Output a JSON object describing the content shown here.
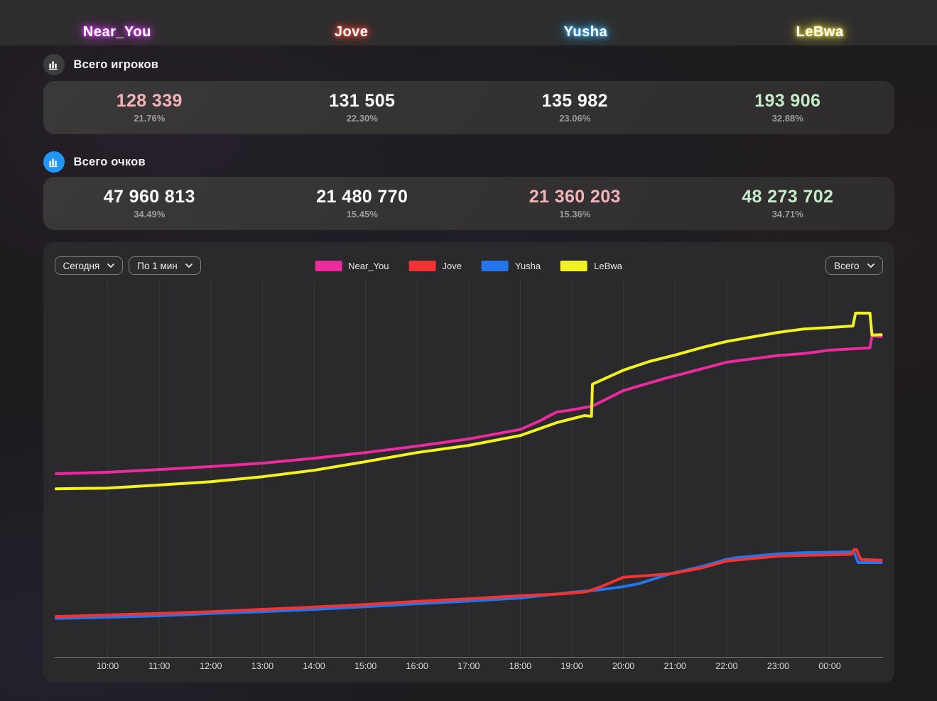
{
  "players": [
    {
      "name": "Near_You",
      "color": "#ea2a9d",
      "glow": "#d93df2"
    },
    {
      "name": "Jove",
      "color": "#f23333",
      "glow": "#ff4b3a"
    },
    {
      "name": "Yusha",
      "color": "#2574e9",
      "glow": "#3fb6ff"
    },
    {
      "name": "LeBwa",
      "color": "#f2f222",
      "glow": "#f0e43c"
    }
  ],
  "tones": {
    "white": "#fafafa",
    "pink": "#f3b3ba",
    "green": "#c5ebc9"
  },
  "sections": [
    {
      "title": "Всего игроков",
      "icon": "bar-chart-icon",
      "icon_bg": "#3d3d3d",
      "icon_fg": "#ffffff",
      "stats": [
        {
          "value": "128 339",
          "percent": "21.76%",
          "tone": "pink"
        },
        {
          "value": "131 505",
          "percent": "22.30%",
          "tone": "white"
        },
        {
          "value": "135 982",
          "percent": "23.06%",
          "tone": "white"
        },
        {
          "value": "193 906",
          "percent": "32.88%",
          "tone": "green"
        }
      ]
    },
    {
      "title": "Всего очков",
      "icon": "bar-chart-icon",
      "icon_bg": "#2196f3",
      "icon_fg": "#ffffff",
      "stats": [
        {
          "value": "47 960 813",
          "percent": "34.49%",
          "tone": "white"
        },
        {
          "value": "21 480 770",
          "percent": "15.45%",
          "tone": "white"
        },
        {
          "value": "21 360 203",
          "percent": "15.36%",
          "tone": "pink"
        },
        {
          "value": "48 273 702",
          "percent": "34.71%",
          "tone": "green"
        }
      ]
    }
  ],
  "chart": {
    "controls": {
      "period": "Сегодня",
      "interval": "По 1 мин",
      "metric": "Всего"
    }
  },
  "chart_data": {
    "type": "line",
    "title": "",
    "xlabel": "",
    "ylabel": "",
    "x_unit": "time_of_day_hours",
    "x_range_hours": [
      9,
      25
    ],
    "x_ticks": [
      "10:00",
      "11:00",
      "12:00",
      "13:00",
      "14:00",
      "15:00",
      "16:00",
      "17:00",
      "18:00",
      "19:00",
      "20:00",
      "21:00",
      "22:00",
      "23:00",
      "00:00"
    ],
    "y_axis_labels_shown": false,
    "y_unit": "estimated_percent_of_plot_height",
    "grid": "vertical-only",
    "legend_position": "top-center",
    "series": [
      {
        "name": "Yusha",
        "color": "#2574e9",
        "points": [
          [
            9,
            10.2
          ],
          [
            10,
            10.5
          ],
          [
            11,
            10.9
          ],
          [
            12,
            11.5
          ],
          [
            13,
            12.0
          ],
          [
            14,
            12.6
          ],
          [
            15,
            13.3
          ],
          [
            16,
            14.1
          ],
          [
            17,
            14.8
          ],
          [
            18,
            15.6
          ],
          [
            19,
            17.1
          ],
          [
            19.5,
            17.7
          ],
          [
            20,
            18.6
          ],
          [
            20.3,
            19.4
          ],
          [
            20.9,
            22.0
          ],
          [
            21.5,
            23.9
          ],
          [
            22,
            25.8
          ],
          [
            22.2,
            26.3
          ],
          [
            23,
            27.3
          ],
          [
            23.5,
            27.6
          ],
          [
            24.4,
            27.8
          ],
          [
            24.47,
            27.8
          ],
          [
            24.55,
            25.0
          ],
          [
            25,
            25.0
          ]
        ]
      },
      {
        "name": "Jove",
        "color": "#f23333",
        "points": [
          [
            9,
            10.7
          ],
          [
            10,
            11.1
          ],
          [
            11,
            11.5
          ],
          [
            12,
            12.0
          ],
          [
            13,
            12.6
          ],
          [
            14,
            13.2
          ],
          [
            15,
            13.9
          ],
          [
            16,
            14.7
          ],
          [
            17,
            15.4
          ],
          [
            18,
            16.2
          ],
          [
            18.8,
            16.7
          ],
          [
            19.3,
            17.3
          ],
          [
            19.6,
            18.8
          ],
          [
            20,
            21.1
          ],
          [
            20.3,
            21.4
          ],
          [
            20.9,
            22.0
          ],
          [
            21.5,
            23.5
          ],
          [
            22,
            25.4
          ],
          [
            23,
            26.7
          ],
          [
            23.5,
            26.9
          ],
          [
            24.3,
            27.1
          ],
          [
            24.42,
            27.2
          ],
          [
            24.47,
            28.4
          ],
          [
            24.52,
            28.4
          ],
          [
            24.6,
            25.8
          ],
          [
            25,
            25.6
          ]
        ]
      },
      {
        "name": "Near_You",
        "color": "#ea2a9d",
        "points": [
          [
            9,
            48.5
          ],
          [
            10,
            48.9
          ],
          [
            11,
            49.6
          ],
          [
            12,
            50.4
          ],
          [
            13,
            51.3
          ],
          [
            14,
            52.6
          ],
          [
            15,
            54.1
          ],
          [
            16,
            55.8
          ],
          [
            17,
            57.7
          ],
          [
            18,
            60.2
          ],
          [
            18.35,
            62.3
          ],
          [
            18.7,
            64.8
          ],
          [
            19,
            65.4
          ],
          [
            19.4,
            66.4
          ],
          [
            20,
            70.5
          ],
          [
            20.8,
            73.7
          ],
          [
            21,
            74.4
          ],
          [
            22,
            78.0
          ],
          [
            23,
            79.8
          ],
          [
            23.5,
            80.3
          ],
          [
            24,
            81.2
          ],
          [
            24.78,
            81.8
          ],
          [
            24.82,
            85.0
          ],
          [
            25,
            84.8
          ]
        ]
      },
      {
        "name": "LeBwa",
        "color": "#f2f222",
        "points": [
          [
            9,
            44.5
          ],
          [
            10,
            44.7
          ],
          [
            11,
            45.5
          ],
          [
            12,
            46.4
          ],
          [
            13,
            47.7
          ],
          [
            14,
            49.4
          ],
          [
            15,
            51.7
          ],
          [
            16,
            54.1
          ],
          [
            17,
            56.0
          ],
          [
            18,
            58.6
          ],
          [
            18.7,
            62.0
          ],
          [
            19.25,
            63.9
          ],
          [
            19.38,
            63.7
          ],
          [
            19.4,
            72.2
          ],
          [
            20,
            75.9
          ],
          [
            20.5,
            78.2
          ],
          [
            21,
            79.9
          ],
          [
            21.5,
            81.8
          ],
          [
            22,
            83.5
          ],
          [
            23,
            85.9
          ],
          [
            23.5,
            86.8
          ],
          [
            24,
            87.2
          ],
          [
            24.45,
            87.6
          ],
          [
            24.5,
            91.0
          ],
          [
            24.78,
            91.0
          ],
          [
            24.82,
            85.2
          ],
          [
            25,
            85.3
          ]
        ]
      }
    ]
  }
}
